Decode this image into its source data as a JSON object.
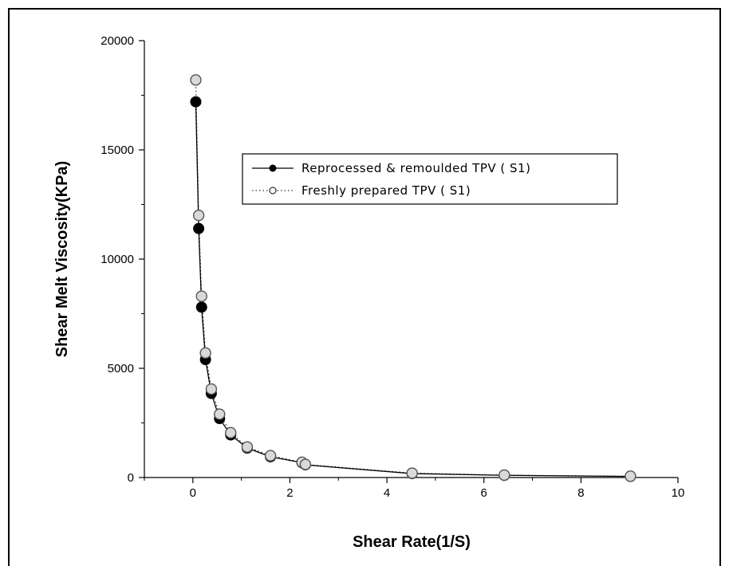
{
  "chart_data": {
    "type": "line",
    "xlabel": "Shear Rate(1/S)",
    "ylabel": "Shear Melt Viscosity(KPa)",
    "xlim": [
      -1,
      10
    ],
    "ylim": [
      0,
      20000
    ],
    "xticks": [
      0,
      2,
      4,
      6,
      8,
      10
    ],
    "yticks": [
      0,
      5000,
      10000,
      15000,
      20000
    ],
    "grid": false,
    "legend_position": "top-right",
    "series": [
      {
        "name": "Reprocessed & remoulded TPV ( S1)",
        "marker": "filled-circle",
        "line": "solid",
        "x": [
          0.06,
          0.12,
          0.18,
          0.26,
          0.38,
          0.55,
          0.78,
          1.12,
          1.6,
          2.25,
          2.32,
          4.52,
          6.42,
          9.02
        ],
        "y": [
          17200,
          11400,
          7800,
          5400,
          3850,
          2700,
          1950,
          1350,
          950,
          680,
          580,
          180,
          100,
          50
        ]
      },
      {
        "name": "Freshly prepared TPV ( S1)",
        "marker": "open-circle",
        "line": "dotted",
        "x": [
          0.06,
          0.12,
          0.18,
          0.26,
          0.38,
          0.55,
          0.78,
          1.12,
          1.6,
          2.25,
          2.32,
          4.52,
          6.42,
          9.02
        ],
        "y": [
          18200,
          12000,
          8300,
          5700,
          4050,
          2900,
          2050,
          1400,
          1000,
          700,
          600,
          200,
          110,
          60
        ]
      }
    ]
  },
  "colors": {
    "axis": "#000000",
    "line": "#000000",
    "filled_marker": "#000000",
    "open_marker_fill": "#d9d9d9"
  }
}
